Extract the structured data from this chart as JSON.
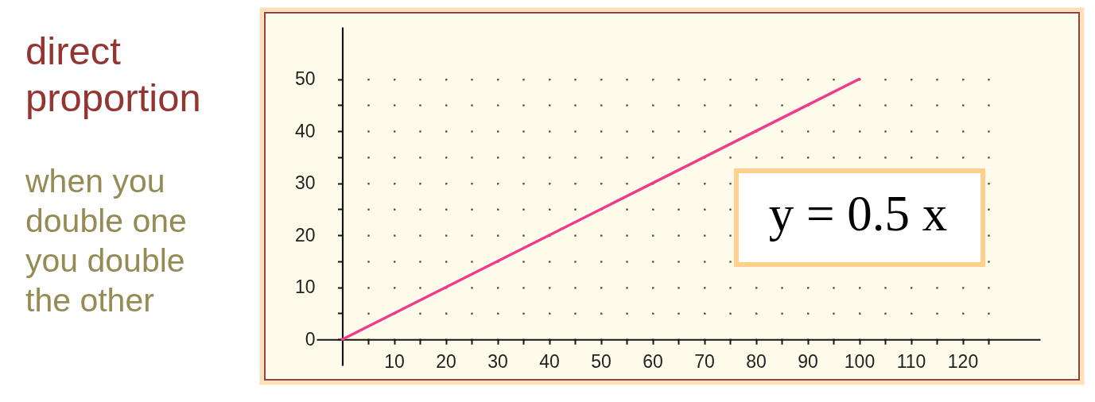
{
  "chart_data": {
    "type": "line",
    "title": "direct proportion",
    "subtitle": "when you double one you double the other",
    "annotations": [
      "y = 0.5 x"
    ],
    "series": [
      {
        "color": "#ef3b8c",
        "x": [
          0,
          100
        ],
        "values": [
          0,
          50
        ]
      }
    ],
    "xlim": [
      -5,
      135
    ],
    "ylim": [
      -5,
      60
    ],
    "xticks": [
      {
        "value": 5,
        "label": null
      },
      10,
      {
        "value": 15,
        "label": null
      },
      20,
      {
        "value": 25,
        "label": null
      },
      30,
      {
        "value": 35,
        "label": null
      },
      40,
      {
        "value": 45,
        "label": null
      },
      50,
      {
        "value": 55,
        "label": null
      },
      60,
      {
        "value": 65,
        "label": null
      },
      70,
      {
        "value": 75,
        "label": null
      },
      80,
      {
        "value": 85,
        "label": null
      },
      90,
      {
        "value": 95,
        "label": null
      },
      100,
      {
        "value": 105,
        "label": null
      },
      110,
      {
        "value": 115,
        "label": null
      },
      120,
      {
        "value": 125,
        "label": null
      }
    ],
    "yticks": [
      0,
      {
        "value": 5,
        "label": null
      },
      10,
      {
        "value": 15,
        "label": null
      },
      20,
      {
        "value": 25,
        "label": null
      },
      30,
      {
        "value": 35,
        "label": null
      },
      40,
      {
        "value": 45,
        "label": null
      },
      50
    ],
    "grid": true
  }
}
